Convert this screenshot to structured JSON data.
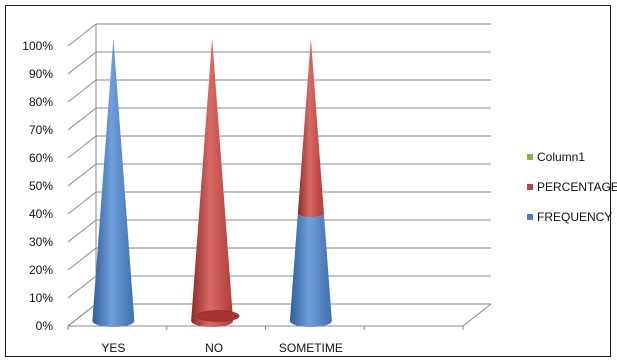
{
  "chart_data": {
    "type": "bar",
    "subtype": "100% stacked 3D cone",
    "title": "",
    "xlabel": "",
    "ylabel": "",
    "ylim": [
      0,
      100
    ],
    "y_ticks": [
      "0%",
      "10%",
      "20%",
      "30%",
      "40%",
      "50%",
      "60%",
      "70%",
      "80%",
      "90%",
      "100%"
    ],
    "categories": [
      "YES",
      "NO",
      "SOMETIME"
    ],
    "series": [
      {
        "name": "FREQUENCY",
        "color": "#4a7ec1",
        "values": [
          100,
          0,
          38
        ]
      },
      {
        "name": "PERCENTAGE",
        "color": "#c0413e",
        "values": [
          0,
          100,
          62
        ]
      },
      {
        "name": "Column1",
        "color": "#8db33f",
        "values": [
          0,
          0,
          0
        ]
      }
    ],
    "legend": [
      "Column1",
      "PERCENTAGE",
      "FREQUENCY"
    ],
    "legend_position": "right",
    "grid": true
  }
}
